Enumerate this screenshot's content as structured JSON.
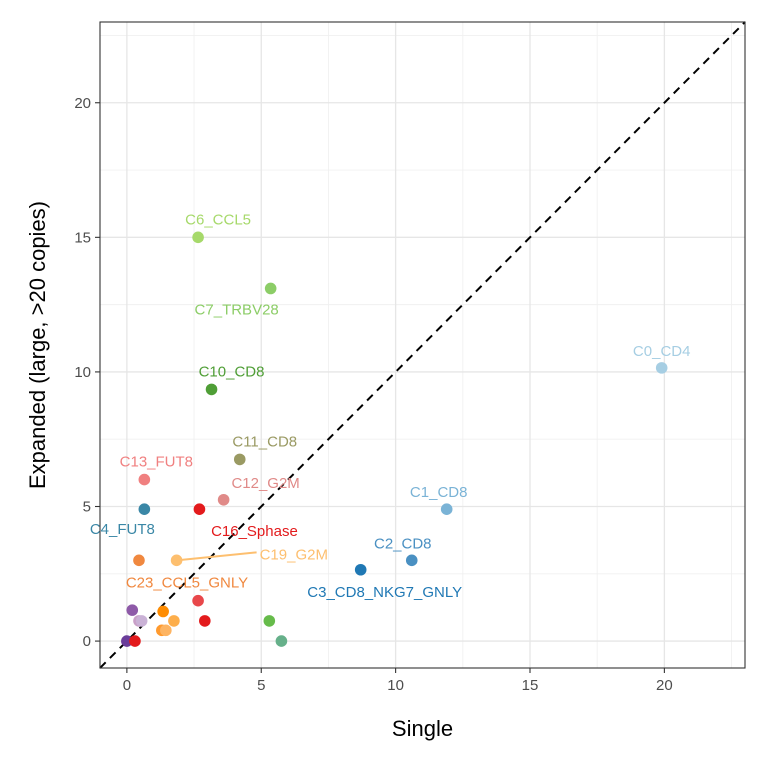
{
  "chart_data": {
    "type": "scatter",
    "xlabel": "Single",
    "ylabel": "Expanded (large, >20 copies)",
    "xlim": [
      -1,
      23
    ],
    "ylim": [
      -1,
      23
    ],
    "x_ticks": [
      0,
      5,
      10,
      15,
      20
    ],
    "y_ticks": [
      0,
      5,
      10,
      15,
      20
    ],
    "x_tick_labels": [
      "0",
      "5",
      "10",
      "15",
      "20"
    ],
    "y_tick_labels": [
      "0",
      "5",
      "10",
      "15",
      "20"
    ],
    "grid": true,
    "reference_line": {
      "type": "identity",
      "style": "dashed",
      "color": "#000000"
    },
    "points": [
      {
        "label": "C0_CD4",
        "x": 19.9,
        "y": 10.15,
        "color": "#a6cee3"
      },
      {
        "label": "C1_CD8",
        "x": 11.9,
        "y": 4.9,
        "color": "#7ab3d6"
      },
      {
        "label": "C2_CD8",
        "x": 10.6,
        "y": 3.0,
        "color": "#4a90c2"
      },
      {
        "label": "C3_CD8_NKG7_GNLY",
        "x": 8.7,
        "y": 2.65,
        "color": "#1f78b4"
      },
      {
        "label": "C4_FUT8",
        "x": 0.65,
        "y": 4.9,
        "color": "#3a87a6"
      },
      {
        "label": "C6_CCL5",
        "x": 2.65,
        "y": 15.0,
        "color": "#a6d96a"
      },
      {
        "label": "C7_TRBV28",
        "x": 5.35,
        "y": 13.1,
        "color": "#8ccd67"
      },
      {
        "label": "C10_CD8",
        "x": 3.15,
        "y": 9.35,
        "color": "#4f9e36"
      },
      {
        "label": "C11_CD8",
        "x": 4.2,
        "y": 6.75,
        "color": "#9a9a63"
      },
      {
        "label": "C12_G2M",
        "x": 3.6,
        "y": 5.25,
        "color": "#e08a88"
      },
      {
        "label": "C13_FUT8",
        "x": 0.65,
        "y": 6.0,
        "color": "#f08080"
      },
      {
        "label": "C16_Sphase",
        "x": 2.7,
        "y": 4.9,
        "color": "#e31a1c"
      },
      {
        "label": "C19_G2M",
        "x": 1.85,
        "y": 3.0,
        "color": "#fdbf6f"
      },
      {
        "label": "C23_CCL5_GNLY",
        "x": 0.45,
        "y": 3.0,
        "color": "#f0883f"
      },
      {
        "label": "",
        "x": 2.65,
        "y": 1.5,
        "color": "#e8474a"
      },
      {
        "label": "",
        "x": 2.9,
        "y": 0.75,
        "color": "#e31a1c"
      },
      {
        "label": "",
        "x": 5.3,
        "y": 0.75,
        "color": "#66bb4a"
      },
      {
        "label": "",
        "x": 5.75,
        "y": 0.0,
        "color": "#66b08a"
      },
      {
        "label": "",
        "x": 1.35,
        "y": 1.1,
        "color": "#ff8c00"
      },
      {
        "label": "",
        "x": 1.75,
        "y": 0.75,
        "color": "#fdae4b"
      },
      {
        "label": "",
        "x": 1.3,
        "y": 0.4,
        "color": "#ff9a2e"
      },
      {
        "label": "",
        "x": 1.45,
        "y": 0.4,
        "color": "#fdb462"
      },
      {
        "label": "",
        "x": 0.2,
        "y": 1.15,
        "color": "#8e5aa8"
      },
      {
        "label": "",
        "x": 0.45,
        "y": 0.75,
        "color": "#c9a0c8"
      },
      {
        "label": "",
        "x": 0.55,
        "y": 0.75,
        "color": "#cab2d6"
      },
      {
        "label": "",
        "x": 0.0,
        "y": 0.0,
        "color": "#6a3d9a"
      },
      {
        "label": "",
        "x": 0.3,
        "y": 0.0,
        "color": "#e31a1c"
      }
    ]
  }
}
